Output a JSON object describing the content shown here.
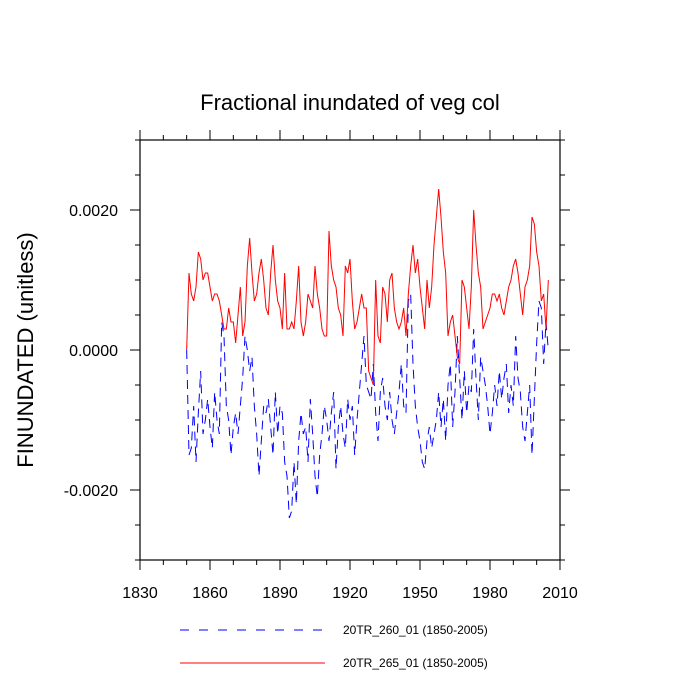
{
  "chart_data": {
    "type": "line",
    "title": "Fractional inundated of veg col",
    "xlabel": "",
    "ylabel": "FINUNDATED  (unitless)",
    "xlim": [
      1830,
      2010
    ],
    "ylim": [
      -0.003,
      0.003
    ],
    "x_ticks": [
      1830,
      1860,
      1890,
      1920,
      1950,
      1980,
      2010
    ],
    "x_tick_labels": [
      "1830",
      "1860",
      "1890",
      "1920",
      "1950",
      "1980",
      "2010"
    ],
    "y_ticks": [
      -0.002,
      0.0,
      0.002
    ],
    "y_tick_labels": [
      "-0.0020",
      "0.0000",
      "0.0020"
    ],
    "grid": false,
    "legend_position": "bottom",
    "series": [
      {
        "name": "20TR_260_01 (1850-2005)",
        "color": "#0000ff",
        "dash": "dashed",
        "x_start": 1850,
        "x_step": 1,
        "values": [
          0.0,
          -0.0015,
          -0.0014,
          -0.0008,
          -0.0016,
          -0.0009,
          -0.0003,
          -0.0012,
          -0.001,
          -0.0007,
          -0.0011,
          -0.0014,
          -0.0006,
          -0.001,
          -0.0012,
          0.0004,
          0.0002,
          -0.0008,
          -0.001,
          -0.0015,
          -0.0011,
          -0.0009,
          -0.0012,
          -0.0008,
          -0.0004,
          0.0002,
          0.0,
          -0.0003,
          -0.0001,
          -0.0008,
          -0.0012,
          -0.0018,
          -0.0013,
          -0.0008,
          -0.0009,
          -0.0007,
          -0.0011,
          -0.0015,
          -0.0006,
          -0.0012,
          -0.0008,
          -0.0009,
          -0.0016,
          -0.0018,
          -0.0024,
          -0.0023,
          -0.0016,
          -0.0022,
          -0.0013,
          -0.0009,
          -0.0012,
          -0.0011,
          -0.0016,
          -0.0007,
          -0.0012,
          -0.0018,
          -0.0021,
          -0.0015,
          -0.0012,
          -0.0008,
          -0.001,
          -0.0013,
          -0.0009,
          -0.0006,
          -0.0017,
          -0.0011,
          -0.0008,
          -0.0012,
          -0.0014,
          -0.0007,
          -0.001,
          -0.0008,
          -0.0015,
          -0.001,
          -0.0006,
          -0.0002,
          0.0002,
          -0.0005,
          -0.0006,
          -0.0007,
          -0.0002,
          -0.0009,
          -0.0013,
          -0.0006,
          -0.0004,
          -0.0008,
          -0.001,
          -0.0006,
          -0.001,
          -0.0012,
          -0.0009,
          -0.0006,
          -0.0002,
          -0.0008,
          -0.0009,
          0.0007,
          0.0008,
          -0.0002,
          -0.0008,
          -0.0011,
          -0.0013,
          -0.0016,
          -0.0017,
          -0.0013,
          -0.0011,
          -0.0014,
          -0.0012,
          -0.001,
          -0.0006,
          -0.0011,
          -0.0007,
          -0.0013,
          -0.0005,
          -0.0002,
          -0.0011,
          -0.0006,
          0.0002,
          -0.0004,
          -0.001,
          -0.0003,
          -0.0009,
          -0.0005,
          -0.0006,
          0.0003,
          -0.0004,
          -0.001,
          -0.0001,
          -0.0003,
          -0.0005,
          -0.0008,
          -0.0012,
          -0.0009,
          -0.0005,
          -0.0008,
          -0.0003,
          -0.0007,
          -0.0004,
          -0.0002,
          -0.0009,
          -0.0005,
          -0.0008,
          0.0002,
          -0.0004,
          -0.0006,
          -0.0011,
          -0.0013,
          -0.0009,
          -0.0005,
          -0.0015,
          -0.0007,
          0.0001,
          0.0007,
          0.0006,
          -0.0002,
          0.0004,
          0.0
        ]
      },
      {
        "name": "20TR_265_01 (1850-2005)",
        "color": "#ff0000",
        "dash": "solid",
        "x_start": 1850,
        "x_step": 1,
        "values": [
          0.0,
          0.0011,
          0.0008,
          0.0007,
          0.0009,
          0.0014,
          0.0013,
          0.001,
          0.0011,
          0.0011,
          0.0009,
          0.0007,
          0.0008,
          0.0008,
          0.0007,
          0.0005,
          0.0003,
          0.0003,
          0.0006,
          0.0004,
          0.0004,
          0.0001,
          0.0005,
          0.0009,
          0.0002,
          0.0004,
          0.0012,
          0.0016,
          0.0011,
          0.0007,
          0.0008,
          0.0011,
          0.0013,
          0.001,
          0.0006,
          0.0005,
          0.0011,
          0.0015,
          0.001,
          0.0007,
          0.0006,
          0.0003,
          0.0011,
          0.0003,
          0.0003,
          0.0004,
          0.0003,
          0.0007,
          0.0012,
          0.0004,
          0.0002,
          0.0004,
          0.0008,
          0.0007,
          0.0006,
          0.0012,
          0.0008,
          0.0006,
          0.0003,
          0.0002,
          0.0002,
          0.0017,
          0.0012,
          0.001,
          0.0009,
          0.0006,
          0.0005,
          0.0002,
          0.0012,
          0.0011,
          0.0013,
          0.0007,
          0.0003,
          0.0004,
          0.0006,
          0.0008,
          0.0006,
          0.0006,
          -0.0003,
          -0.0004,
          -0.0005,
          0.001,
          0.0002,
          0.0001,
          0.0009,
          0.0008,
          0.0004,
          0.001,
          0.0011,
          0.0006,
          0.0004,
          0.0003,
          0.0004,
          0.0006,
          0.0002,
          0.0008,
          0.0012,
          0.0015,
          0.0011,
          0.0013,
          0.0009,
          0.0006,
          0.0003,
          0.001,
          0.0006,
          0.0009,
          0.0015,
          0.0019,
          0.0023,
          0.0019,
          0.0014,
          0.0011,
          0.0002,
          0.0004,
          0.0005,
          0.0002,
          -0.0001,
          -0.0002,
          0.001,
          0.0009,
          0.0006,
          0.0003,
          0.0009,
          0.002,
          0.0015,
          0.0011,
          0.0009,
          0.0003,
          0.0004,
          0.0005,
          0.0006,
          0.0008,
          0.0008,
          0.0007,
          0.0008,
          0.0006,
          0.0005,
          0.0007,
          0.0009,
          0.001,
          0.0012,
          0.0013,
          0.0011,
          0.0008,
          0.0005,
          0.0009,
          0.001,
          0.0012,
          0.0019,
          0.0018,
          0.0014,
          0.0012,
          0.0007,
          0.0008,
          0.0003,
          0.001
        ]
      }
    ]
  }
}
